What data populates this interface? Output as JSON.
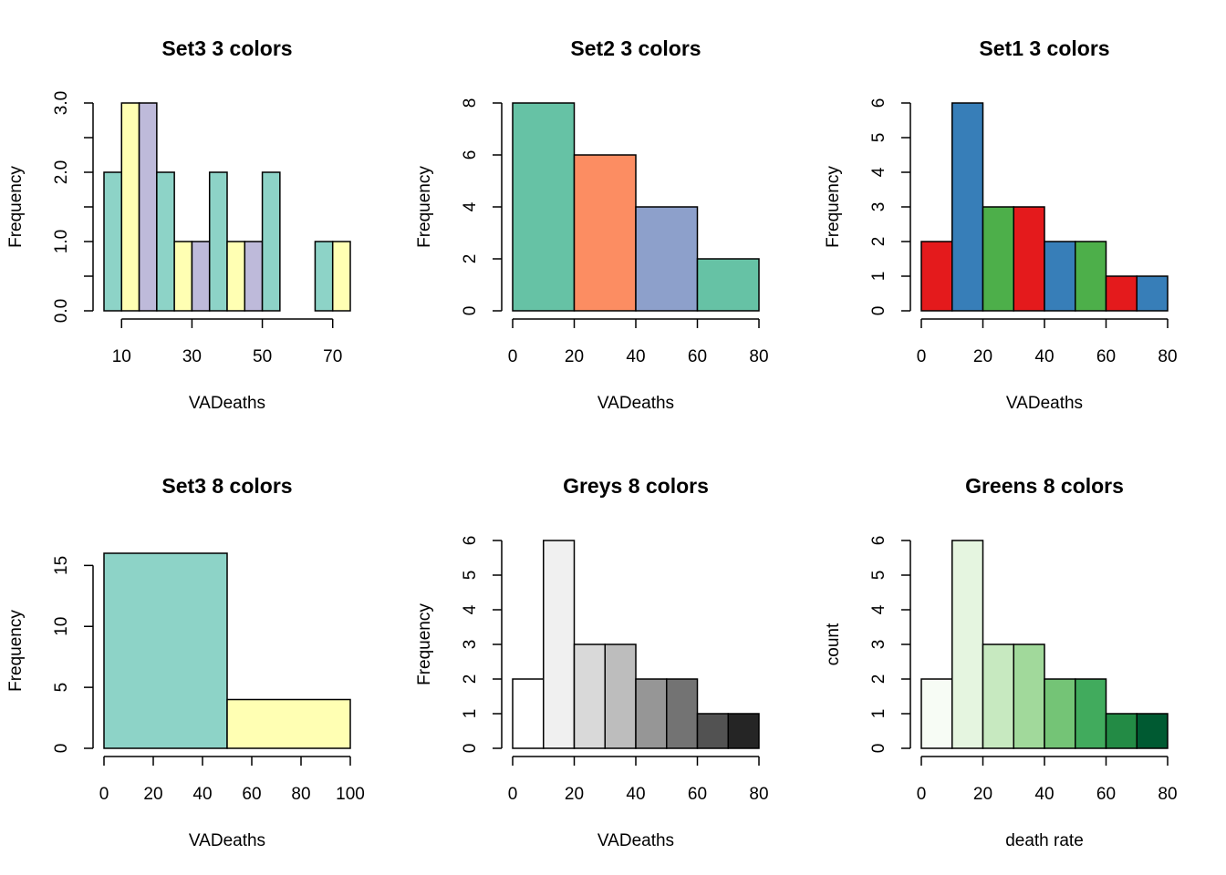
{
  "chart_data": [
    {
      "type": "bar",
      "title": "Set3 3 colors",
      "xlabel": "VADeaths",
      "ylabel": "Frequency",
      "xlim": [
        5,
        75
      ],
      "ylim": [
        0,
        3
      ],
      "breaks": [
        5,
        10,
        15,
        20,
        25,
        30,
        35,
        40,
        45,
        50,
        55,
        60,
        65,
        70,
        75
      ],
      "values": [
        2,
        3,
        3,
        2,
        1,
        1,
        2,
        1,
        1,
        2,
        0,
        0,
        1,
        1
      ],
      "colors": [
        "#8DD3C7",
        "#FFFFB3",
        "#BEBADA"
      ],
      "xticks": [
        10,
        30,
        50,
        70
      ],
      "yticks": [
        0,
        1,
        2,
        3
      ],
      "ytick_labels": [
        "0.0",
        "1.0",
        "2.0",
        "3.0"
      ],
      "yaxis_minor": [
        0,
        0.5,
        1,
        1.5,
        2,
        2.5,
        3
      ]
    },
    {
      "type": "bar",
      "title": "Set2 3 colors",
      "xlabel": "VADeaths",
      "ylabel": "Frequency",
      "xlim": [
        0,
        80
      ],
      "ylim": [
        0,
        8
      ],
      "breaks": [
        0,
        20,
        40,
        60,
        80
      ],
      "values": [
        8,
        6,
        4,
        2
      ],
      "colors": [
        "#66C2A5",
        "#FC8D62",
        "#8DA0CB"
      ],
      "xticks": [
        0,
        20,
        40,
        60,
        80
      ],
      "yticks": [
        0,
        2,
        4,
        6,
        8
      ],
      "ytick_labels": [
        "0",
        "2",
        "4",
        "6",
        "8"
      ]
    },
    {
      "type": "bar",
      "title": "Set1 3 colors",
      "xlabel": "VADeaths",
      "ylabel": "Frequency",
      "xlim": [
        0,
        80
      ],
      "ylim": [
        0,
        6
      ],
      "breaks": [
        0,
        10,
        20,
        30,
        40,
        50,
        60,
        70,
        80
      ],
      "values": [
        2,
        6,
        3,
        3,
        2,
        2,
        1,
        1
      ],
      "colors": [
        "#E41A1C",
        "#377EB8",
        "#4DAF4A"
      ],
      "xticks": [
        0,
        20,
        40,
        60,
        80
      ],
      "yticks": [
        0,
        1,
        2,
        3,
        4,
        5,
        6
      ],
      "ytick_labels": [
        "0",
        "1",
        "2",
        "3",
        "4",
        "5",
        "6"
      ]
    },
    {
      "type": "bar",
      "title": "Set3 8 colors",
      "xlabel": "VADeaths",
      "ylabel": "Frequency",
      "xlim": [
        0,
        100
      ],
      "ylim": [
        0,
        16
      ],
      "breaks": [
        0,
        50,
        100
      ],
      "values": [
        16,
        4
      ],
      "colors": [
        "#8DD3C7",
        "#FFFFB3",
        "#BEBADA",
        "#FB8072",
        "#80B1D3",
        "#FDB462",
        "#B3DE69",
        "#FCCDE5"
      ],
      "xticks": [
        0,
        20,
        40,
        60,
        80,
        100
      ],
      "yticks": [
        0,
        5,
        10,
        15
      ],
      "ytick_labels": [
        "0",
        "5",
        "10",
        "15"
      ]
    },
    {
      "type": "bar",
      "title": "Greys 8 colors",
      "xlabel": "VADeaths",
      "ylabel": "Frequency",
      "xlim": [
        0,
        80
      ],
      "ylim": [
        0,
        6
      ],
      "breaks": [
        0,
        10,
        20,
        30,
        40,
        50,
        60,
        70,
        80
      ],
      "values": [
        2,
        6,
        3,
        3,
        2,
        2,
        1,
        1
      ],
      "colors": [
        "#FFFFFF",
        "#F0F0F0",
        "#D9D9D9",
        "#BDBDBD",
        "#969696",
        "#737373",
        "#525252",
        "#252525"
      ],
      "xticks": [
        0,
        20,
        40,
        60,
        80
      ],
      "yticks": [
        0,
        1,
        2,
        3,
        4,
        5,
        6
      ],
      "ytick_labels": [
        "0",
        "1",
        "2",
        "3",
        "4",
        "5",
        "6"
      ]
    },
    {
      "type": "bar",
      "title": "Greens 8 colors",
      "xlabel": "death rate",
      "ylabel": "count",
      "xlim": [
        0,
        80
      ],
      "ylim": [
        0,
        6
      ],
      "breaks": [
        0,
        10,
        20,
        30,
        40,
        50,
        60,
        70,
        80
      ],
      "values": [
        2,
        6,
        3,
        3,
        2,
        2,
        1,
        1
      ],
      "colors": [
        "#F7FCF5",
        "#E5F5E0",
        "#C7E9C0",
        "#A1D99B",
        "#74C476",
        "#41AB5D",
        "#238B45",
        "#005A32"
      ],
      "xticks": [
        0,
        20,
        40,
        60,
        80
      ],
      "yticks": [
        0,
        1,
        2,
        3,
        4,
        5,
        6
      ],
      "ytick_labels": [
        "0",
        "1",
        "2",
        "3",
        "4",
        "5",
        "6"
      ]
    }
  ]
}
